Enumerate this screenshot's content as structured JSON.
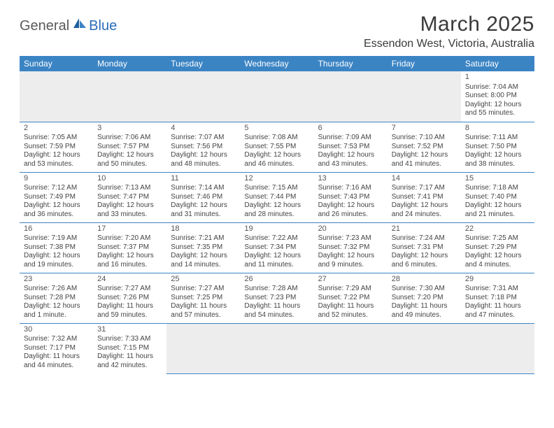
{
  "logo": {
    "text1": "General",
    "text2": "Blue"
  },
  "title": "March 2025",
  "location": "Essendon West, Victoria, Australia",
  "day_headers": [
    "Sunday",
    "Monday",
    "Tuesday",
    "Wednesday",
    "Thursday",
    "Friday",
    "Saturday"
  ],
  "colors": {
    "header_bg": "#3b84c4",
    "header_text": "#ffffff",
    "blank_bg": "#ededed",
    "border": "#3b84c4",
    "logo_gray": "#5a5a5a",
    "logo_blue": "#2a6db8"
  },
  "weeks": [
    [
      null,
      null,
      null,
      null,
      null,
      null,
      {
        "n": "1",
        "sr": "Sunrise: 7:04 AM",
        "ss": "Sunset: 8:00 PM",
        "dl": "Daylight: 12 hours and 55 minutes."
      }
    ],
    [
      {
        "n": "2",
        "sr": "Sunrise: 7:05 AM",
        "ss": "Sunset: 7:59 PM",
        "dl": "Daylight: 12 hours and 53 minutes."
      },
      {
        "n": "3",
        "sr": "Sunrise: 7:06 AM",
        "ss": "Sunset: 7:57 PM",
        "dl": "Daylight: 12 hours and 50 minutes."
      },
      {
        "n": "4",
        "sr": "Sunrise: 7:07 AM",
        "ss": "Sunset: 7:56 PM",
        "dl": "Daylight: 12 hours and 48 minutes."
      },
      {
        "n": "5",
        "sr": "Sunrise: 7:08 AM",
        "ss": "Sunset: 7:55 PM",
        "dl": "Daylight: 12 hours and 46 minutes."
      },
      {
        "n": "6",
        "sr": "Sunrise: 7:09 AM",
        "ss": "Sunset: 7:53 PM",
        "dl": "Daylight: 12 hours and 43 minutes."
      },
      {
        "n": "7",
        "sr": "Sunrise: 7:10 AM",
        "ss": "Sunset: 7:52 PM",
        "dl": "Daylight: 12 hours and 41 minutes."
      },
      {
        "n": "8",
        "sr": "Sunrise: 7:11 AM",
        "ss": "Sunset: 7:50 PM",
        "dl": "Daylight: 12 hours and 38 minutes."
      }
    ],
    [
      {
        "n": "9",
        "sr": "Sunrise: 7:12 AM",
        "ss": "Sunset: 7:49 PM",
        "dl": "Daylight: 12 hours and 36 minutes."
      },
      {
        "n": "10",
        "sr": "Sunrise: 7:13 AM",
        "ss": "Sunset: 7:47 PM",
        "dl": "Daylight: 12 hours and 33 minutes."
      },
      {
        "n": "11",
        "sr": "Sunrise: 7:14 AM",
        "ss": "Sunset: 7:46 PM",
        "dl": "Daylight: 12 hours and 31 minutes."
      },
      {
        "n": "12",
        "sr": "Sunrise: 7:15 AM",
        "ss": "Sunset: 7:44 PM",
        "dl": "Daylight: 12 hours and 28 minutes."
      },
      {
        "n": "13",
        "sr": "Sunrise: 7:16 AM",
        "ss": "Sunset: 7:43 PM",
        "dl": "Daylight: 12 hours and 26 minutes."
      },
      {
        "n": "14",
        "sr": "Sunrise: 7:17 AM",
        "ss": "Sunset: 7:41 PM",
        "dl": "Daylight: 12 hours and 24 minutes."
      },
      {
        "n": "15",
        "sr": "Sunrise: 7:18 AM",
        "ss": "Sunset: 7:40 PM",
        "dl": "Daylight: 12 hours and 21 minutes."
      }
    ],
    [
      {
        "n": "16",
        "sr": "Sunrise: 7:19 AM",
        "ss": "Sunset: 7:38 PM",
        "dl": "Daylight: 12 hours and 19 minutes."
      },
      {
        "n": "17",
        "sr": "Sunrise: 7:20 AM",
        "ss": "Sunset: 7:37 PM",
        "dl": "Daylight: 12 hours and 16 minutes."
      },
      {
        "n": "18",
        "sr": "Sunrise: 7:21 AM",
        "ss": "Sunset: 7:35 PM",
        "dl": "Daylight: 12 hours and 14 minutes."
      },
      {
        "n": "19",
        "sr": "Sunrise: 7:22 AM",
        "ss": "Sunset: 7:34 PM",
        "dl": "Daylight: 12 hours and 11 minutes."
      },
      {
        "n": "20",
        "sr": "Sunrise: 7:23 AM",
        "ss": "Sunset: 7:32 PM",
        "dl": "Daylight: 12 hours and 9 minutes."
      },
      {
        "n": "21",
        "sr": "Sunrise: 7:24 AM",
        "ss": "Sunset: 7:31 PM",
        "dl": "Daylight: 12 hours and 6 minutes."
      },
      {
        "n": "22",
        "sr": "Sunrise: 7:25 AM",
        "ss": "Sunset: 7:29 PM",
        "dl": "Daylight: 12 hours and 4 minutes."
      }
    ],
    [
      {
        "n": "23",
        "sr": "Sunrise: 7:26 AM",
        "ss": "Sunset: 7:28 PM",
        "dl": "Daylight: 12 hours and 1 minute."
      },
      {
        "n": "24",
        "sr": "Sunrise: 7:27 AM",
        "ss": "Sunset: 7:26 PM",
        "dl": "Daylight: 11 hours and 59 minutes."
      },
      {
        "n": "25",
        "sr": "Sunrise: 7:27 AM",
        "ss": "Sunset: 7:25 PM",
        "dl": "Daylight: 11 hours and 57 minutes."
      },
      {
        "n": "26",
        "sr": "Sunrise: 7:28 AM",
        "ss": "Sunset: 7:23 PM",
        "dl": "Daylight: 11 hours and 54 minutes."
      },
      {
        "n": "27",
        "sr": "Sunrise: 7:29 AM",
        "ss": "Sunset: 7:22 PM",
        "dl": "Daylight: 11 hours and 52 minutes."
      },
      {
        "n": "28",
        "sr": "Sunrise: 7:30 AM",
        "ss": "Sunset: 7:20 PM",
        "dl": "Daylight: 11 hours and 49 minutes."
      },
      {
        "n": "29",
        "sr": "Sunrise: 7:31 AM",
        "ss": "Sunset: 7:18 PM",
        "dl": "Daylight: 11 hours and 47 minutes."
      }
    ],
    [
      {
        "n": "30",
        "sr": "Sunrise: 7:32 AM",
        "ss": "Sunset: 7:17 PM",
        "dl": "Daylight: 11 hours and 44 minutes."
      },
      {
        "n": "31",
        "sr": "Sunrise: 7:33 AM",
        "ss": "Sunset: 7:15 PM",
        "dl": "Daylight: 11 hours and 42 minutes."
      },
      null,
      null,
      null,
      null,
      null
    ]
  ]
}
